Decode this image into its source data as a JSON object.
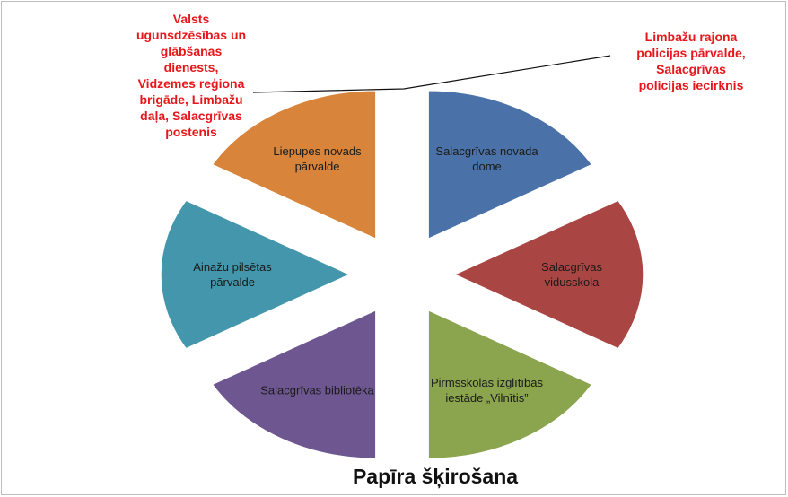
{
  "chart_data": {
    "type": "pie",
    "title": "Papīra šķirošana",
    "categories": [
      "Salacgrīvas novada\ndome",
      "Salacgrīvas\nvidusskola",
      "Pirmsskolas izglītības\niestāde „Vilnītis”",
      "Salacgrīvas bibliotēka",
      "Ainažu pilsētas\npārvalde",
      "Liepupes novads\npārvalde"
    ],
    "values": [
      1,
      1,
      1,
      1,
      1,
      1
    ],
    "colors": [
      "#4a72a8",
      "#a94542",
      "#8ba54e",
      "#6e5791",
      "#4396ab",
      "#d9843b"
    ],
    "exploded": true,
    "annotations": [
      "Valsts\nugunsdzēsības un\nglābšanas\ndienests,\nVidzemes reģiona\nbrigāde, Limbažu\ndaļa, Salacgrīvas\npostenis",
      "Limbažu rajona\npolicijas pārvalde,\nSalacgrīvas\npolicijas iecirknis"
    ]
  }
}
